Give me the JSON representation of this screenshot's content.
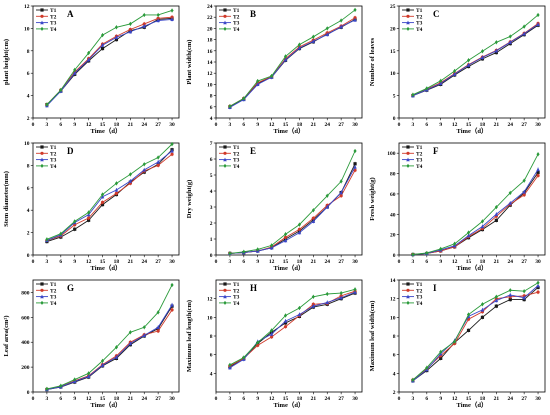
{
  "colors": {
    "T1": "#1a1a1a",
    "T2": "#d03a2a",
    "T3": "#3a46c8",
    "T4": "#2a9a3a"
  },
  "legend": [
    "T1",
    "T2",
    "T3",
    "T4"
  ],
  "chart_data": [
    {
      "id": "A",
      "type": "line",
      "letter": "A",
      "xlabel": "Time（d）",
      "ylabel": "plant height(cm)",
      "x": [
        3,
        6,
        9,
        12,
        15,
        18,
        21,
        24,
        27,
        30
      ],
      "xticks": [
        0,
        3,
        6,
        9,
        12,
        15,
        18,
        21,
        24,
        27,
        30
      ],
      "xlim": [
        0,
        31.5
      ],
      "ylim": [
        2,
        12
      ],
      "yticks": [
        2,
        4,
        6,
        8,
        10,
        12
      ],
      "legend_position": "top-left",
      "series": [
        {
          "name": "T1",
          "values": [
            3.2,
            4.4,
            5.9,
            7.1,
            8.2,
            9.0,
            9.8,
            10.1,
            10.8,
            10.9
          ]
        },
        {
          "name": "T2",
          "values": [
            3.2,
            4.5,
            6.1,
            7.3,
            8.6,
            9.3,
            9.9,
            10.4,
            10.9,
            11.0
          ]
        },
        {
          "name": "T3",
          "values": [
            3.1,
            4.4,
            6.0,
            7.2,
            8.5,
            9.2,
            9.7,
            10.2,
            10.7,
            10.8
          ]
        },
        {
          "name": "T4",
          "values": [
            3.2,
            4.5,
            6.3,
            7.8,
            9.4,
            10.1,
            10.4,
            11.2,
            11.2,
            11.6
          ]
        }
      ]
    },
    {
      "id": "B",
      "type": "line",
      "letter": "B",
      "xlabel": "Time（d）",
      "ylabel": "Plant width(cm)",
      "x": [
        3,
        6,
        9,
        12,
        15,
        18,
        21,
        24,
        27,
        30
      ],
      "xticks": [
        0,
        3,
        6,
        9,
        12,
        15,
        18,
        21,
        24,
        27,
        30
      ],
      "xlim": [
        0,
        31.5
      ],
      "ylim": [
        4,
        24
      ],
      "yticks": [
        4,
        6,
        8,
        10,
        12,
        14,
        16,
        18,
        20,
        22,
        24
      ],
      "legend_position": "top-left",
      "series": [
        {
          "name": "T1",
          "values": [
            6.0,
            7.4,
            10.2,
            11.3,
            14.3,
            16.4,
            17.6,
            19.0,
            20.2,
            21.6
          ]
        },
        {
          "name": "T2",
          "values": [
            6.1,
            7.5,
            10.3,
            11.4,
            14.6,
            16.7,
            17.9,
            19.2,
            20.4,
            21.9
          ]
        },
        {
          "name": "T3",
          "values": [
            5.9,
            7.3,
            10.0,
            11.3,
            14.4,
            16.5,
            17.7,
            18.9,
            20.3,
            21.5
          ]
        },
        {
          "name": "T4",
          "values": [
            6.1,
            7.5,
            10.6,
            11.5,
            15.0,
            17.1,
            18.5,
            20.0,
            21.4,
            23.3
          ]
        }
      ]
    },
    {
      "id": "C",
      "type": "line",
      "letter": "C",
      "xlabel": "Time（d）",
      "ylabel": "Number of leaves",
      "x": [
        3,
        6,
        9,
        12,
        15,
        18,
        21,
        24,
        27,
        30
      ],
      "xticks": [
        0,
        3,
        6,
        9,
        12,
        15,
        18,
        21,
        24,
        27,
        30
      ],
      "xlim": [
        0,
        31.5
      ],
      "ylim": [
        0,
        25
      ],
      "yticks": [
        0,
        5,
        10,
        15,
        20,
        25
      ],
      "legend_position": "top-left",
      "series": [
        {
          "name": "T1",
          "values": [
            5.0,
            6.2,
            7.5,
            9.6,
            11.5,
            13.2,
            14.6,
            16.6,
            18.6,
            20.7
          ]
        },
        {
          "name": "T2",
          "values": [
            5.1,
            6.4,
            7.9,
            9.9,
            11.9,
            13.6,
            15.1,
            17.0,
            18.9,
            21.1
          ]
        },
        {
          "name": "T3",
          "values": [
            5.0,
            6.3,
            7.7,
            9.8,
            11.8,
            13.5,
            15.0,
            16.9,
            18.8,
            20.9
          ]
        },
        {
          "name": "T4",
          "values": [
            5.2,
            6.6,
            8.3,
            10.5,
            12.9,
            14.9,
            16.9,
            18.2,
            20.4,
            23.0
          ]
        }
      ]
    },
    {
      "id": "D",
      "type": "line",
      "letter": "D",
      "xlabel": "Time（d）",
      "ylabel": "Stem diameter(mm)",
      "x": [
        3,
        6,
        9,
        12,
        15,
        18,
        21,
        24,
        27,
        30
      ],
      "xticks": [
        0,
        3,
        6,
        9,
        12,
        15,
        18,
        21,
        24,
        27,
        30
      ],
      "xlim": [
        0,
        31.5
      ],
      "ylim": [
        0,
        10
      ],
      "yticks": [
        0,
        2,
        4,
        6,
        8,
        10
      ],
      "legend_position": "top-left",
      "series": [
        {
          "name": "T1",
          "values": [
            1.2,
            1.6,
            2.3,
            3.1,
            4.5,
            5.4,
            6.5,
            7.4,
            8.1,
            9.4
          ]
        },
        {
          "name": "T2",
          "values": [
            1.3,
            1.7,
            2.7,
            3.3,
            4.7,
            5.5,
            6.4,
            7.5,
            8.0,
            9.0
          ]
        },
        {
          "name": "T3",
          "values": [
            1.3,
            1.8,
            2.9,
            3.6,
            5.2,
            5.8,
            6.6,
            7.6,
            8.3,
            9.3
          ]
        },
        {
          "name": "T4",
          "values": [
            1.4,
            1.9,
            3.0,
            3.8,
            5.4,
            6.4,
            7.2,
            8.1,
            8.7,
            9.9
          ]
        }
      ]
    },
    {
      "id": "E",
      "type": "line",
      "letter": "E",
      "xlabel": "Time（d）",
      "ylabel": "Dry weight(g)",
      "x": [
        3,
        6,
        9,
        12,
        15,
        18,
        21,
        24,
        27,
        30
      ],
      "xticks": [
        0,
        3,
        6,
        9,
        12,
        15,
        18,
        21,
        24,
        27,
        30
      ],
      "xlim": [
        0,
        31.5
      ],
      "ylim": [
        0,
        7
      ],
      "yticks": [
        0,
        1,
        2,
        3,
        4,
        5,
        6,
        7
      ],
      "legend_position": "top-left",
      "series": [
        {
          "name": "T1",
          "values": [
            0.1,
            0.15,
            0.25,
            0.45,
            1.0,
            1.5,
            2.2,
            3.0,
            3.9,
            5.7
          ]
        },
        {
          "name": "T2",
          "values": [
            0.1,
            0.15,
            0.25,
            0.5,
            1.1,
            1.6,
            2.3,
            3.1,
            3.7,
            5.3
          ]
        },
        {
          "name": "T3",
          "values": [
            0.1,
            0.15,
            0.25,
            0.45,
            0.9,
            1.4,
            2.1,
            3.0,
            3.9,
            5.5
          ]
        },
        {
          "name": "T4",
          "values": [
            0.1,
            0.2,
            0.35,
            0.6,
            1.3,
            1.9,
            2.8,
            3.7,
            4.6,
            6.5
          ]
        }
      ]
    },
    {
      "id": "F",
      "type": "line",
      "letter": "F",
      "xlabel": "Time（d）",
      "ylabel": "Fresh weight(g)",
      "x": [
        3,
        6,
        9,
        12,
        15,
        18,
        21,
        24,
        27,
        30
      ],
      "xticks": [
        0,
        3,
        6,
        9,
        12,
        15,
        18,
        21,
        24,
        27,
        30
      ],
      "xlim": [
        0,
        31.5
      ],
      "ylim": [
        0,
        110
      ],
      "yticks": [
        0,
        20,
        40,
        60,
        80,
        100
      ],
      "legend_position": "top-left",
      "series": [
        {
          "name": "T1",
          "values": [
            0.5,
            1.5,
            4,
            8,
            17,
            25,
            34,
            49,
            61,
            81
          ]
        },
        {
          "name": "T2",
          "values": [
            0.5,
            1.5,
            4,
            8,
            18,
            26,
            38,
            50,
            59,
            78
          ]
        },
        {
          "name": "T3",
          "values": [
            0.5,
            1.5,
            5,
            9,
            19,
            28,
            40,
            51,
            62,
            84
          ]
        },
        {
          "name": "T4",
          "values": [
            0.5,
            2,
            6,
            11,
            22,
            33,
            47,
            61,
            73,
            99
          ]
        }
      ]
    },
    {
      "id": "G",
      "type": "line",
      "letter": "G",
      "xlabel": "Time（d）",
      "ylabel": "Leaf area(cm²)",
      "x": [
        3,
        6,
        9,
        12,
        15,
        18,
        21,
        24,
        27,
        30
      ],
      "xticks": [
        0,
        3,
        6,
        9,
        12,
        15,
        18,
        21,
        24,
        27,
        30
      ],
      "xlim": [
        0,
        31.5
      ],
      "ylim": [
        0,
        900
      ],
      "yticks": [
        0,
        200,
        400,
        600,
        800
      ],
      "legend_position": "top-left",
      "series": [
        {
          "name": "T1",
          "values": [
            20,
            40,
            80,
            120,
            210,
            270,
            380,
            450,
            510,
            690
          ]
        },
        {
          "name": "T2",
          "values": [
            22,
            45,
            90,
            130,
            220,
            290,
            400,
            460,
            490,
            660
          ]
        },
        {
          "name": "T3",
          "values": [
            20,
            42,
            85,
            125,
            215,
            280,
            390,
            455,
            520,
            700
          ]
        },
        {
          "name": "T4",
          "values": [
            25,
            50,
            100,
            150,
            250,
            360,
            480,
            520,
            640,
            860
          ]
        }
      ]
    },
    {
      "id": "H",
      "type": "line",
      "letter": "H",
      "xlabel": "Time（d）",
      "ylabel": "Maximum leaf length(cm)",
      "x": [
        3,
        6,
        9,
        12,
        15,
        18,
        21,
        24,
        27,
        30
      ],
      "xticks": [
        0,
        3,
        6,
        9,
        12,
        15,
        18,
        21,
        24,
        27,
        30
      ],
      "xlim": [
        0,
        31.5
      ],
      "ylim": [
        2,
        14
      ],
      "yticks": [
        4,
        6,
        8,
        10,
        12
      ],
      "legend_position": "top-left",
      "series": [
        {
          "name": "T1",
          "values": [
            4.7,
            5.6,
            7.2,
            8.4,
            9.4,
            10.1,
            11.1,
            11.4,
            12.0,
            12.6
          ]
        },
        {
          "name": "T2",
          "values": [
            4.8,
            5.6,
            7.0,
            7.9,
            9.0,
            10.2,
            11.4,
            11.5,
            12.3,
            12.8
          ]
        },
        {
          "name": "T3",
          "values": [
            4.6,
            5.5,
            7.4,
            8.2,
            9.6,
            10.3,
            11.2,
            11.6,
            12.1,
            12.7
          ]
        },
        {
          "name": "T4",
          "values": [
            4.9,
            5.7,
            7.3,
            8.6,
            10.2,
            11.0,
            12.2,
            12.5,
            12.6,
            13.0
          ]
        }
      ]
    },
    {
      "id": "I",
      "type": "line",
      "letter": "I",
      "xlabel": "Time（d）",
      "ylabel": "Maximum leaf width(cm)",
      "x": [
        3,
        6,
        9,
        12,
        15,
        18,
        21,
        24,
        27,
        30
      ],
      "xticks": [
        0,
        3,
        6,
        9,
        12,
        15,
        18,
        21,
        24,
        27,
        30
      ],
      "xlim": [
        0,
        31.5
      ],
      "ylim": [
        2,
        14
      ],
      "yticks": [
        2,
        4,
        6,
        8,
        10,
        12,
        14
      ],
      "legend_position": "top-left",
      "series": [
        {
          "name": "T1",
          "values": [
            3.2,
            4.3,
            5.6,
            7.3,
            8.6,
            10.0,
            11.2,
            11.9,
            11.9,
            13.2
          ]
        },
        {
          "name": "T2",
          "values": [
            3.3,
            4.5,
            5.9,
            7.2,
            9.8,
            10.6,
            12.0,
            12.2,
            12.3,
            12.7
          ]
        },
        {
          "name": "T3",
          "values": [
            3.2,
            4.4,
            6.1,
            7.5,
            10.1,
            10.8,
            11.8,
            12.4,
            12.1,
            13.4
          ]
        },
        {
          "name": "T4",
          "values": [
            3.3,
            4.6,
            6.3,
            7.4,
            10.3,
            11.4,
            12.2,
            12.9,
            12.8,
            13.7
          ]
        }
      ]
    }
  ]
}
